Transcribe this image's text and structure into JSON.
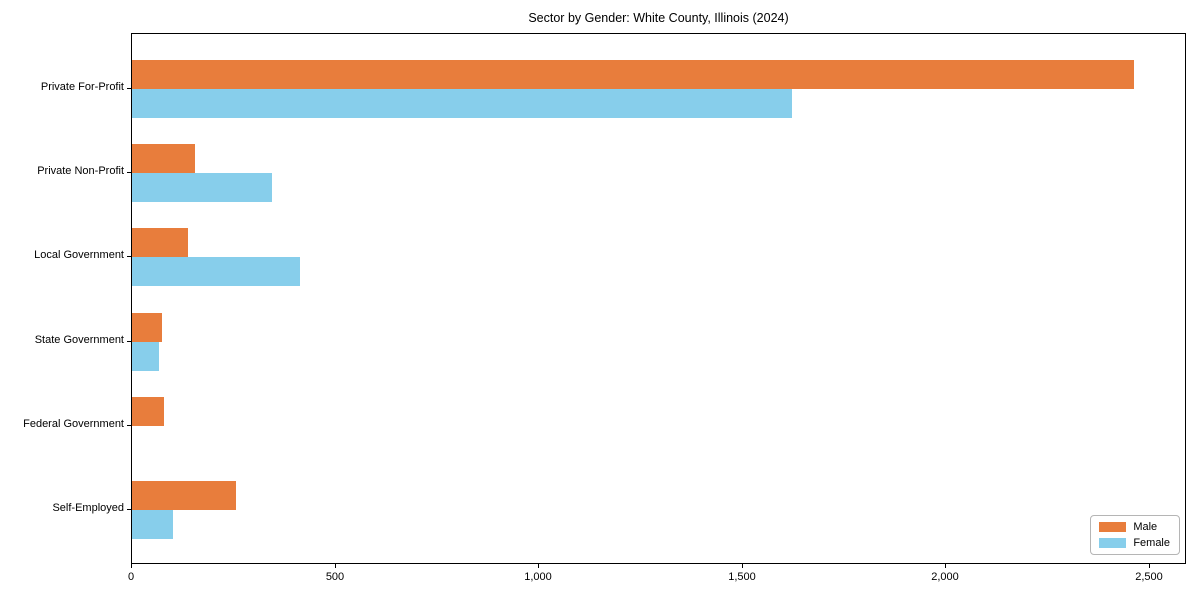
{
  "chart_data": {
    "type": "bar",
    "orientation": "horizontal",
    "title": "Sector by Gender: White County, Illinois (2024)",
    "categories": [
      "Private For-Profit",
      "Private Non-Profit",
      "Local Government",
      "State Government",
      "Federal Government",
      "Self-Employed"
    ],
    "series": [
      {
        "name": "Male",
        "color": "#E87D3C",
        "values": [
          2460,
          155,
          137,
          74,
          78,
          255
        ]
      },
      {
        "name": "Female",
        "color": "#87CEEB",
        "values": [
          1620,
          345,
          412,
          66,
          0,
          100
        ]
      }
    ],
    "xlabel": "",
    "ylabel": "",
    "xlim": [
      0,
      2586
    ],
    "xticks": [
      0,
      500,
      1000,
      1500,
      2000,
      2500
    ],
    "xtick_labels": [
      "0",
      "500",
      "1,000",
      "1,500",
      "2,000",
      "2,500"
    ],
    "grid": false,
    "legend_position": "lower right"
  }
}
